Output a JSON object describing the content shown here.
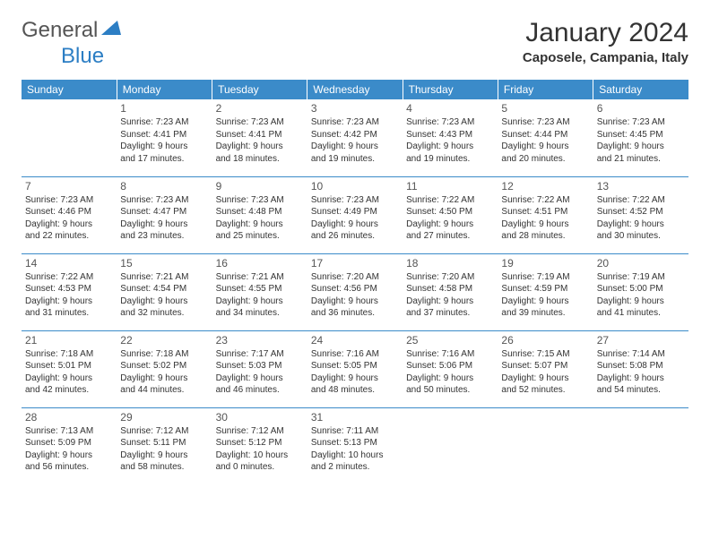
{
  "logo": {
    "general": "General",
    "blue": "Blue"
  },
  "title": "January 2024",
  "location": "Caposele, Campania, Italy",
  "colors": {
    "header_bg": "#3b8bc9",
    "header_fg": "#ffffff",
    "rule": "#3b8bc9",
    "text": "#333333",
    "logo_blue": "#2c7ec4"
  },
  "dayHeaders": [
    "Sunday",
    "Monday",
    "Tuesday",
    "Wednesday",
    "Thursday",
    "Friday",
    "Saturday"
  ],
  "weeks": [
    [
      null,
      {
        "n": "1",
        "sr": "Sunrise: 7:23 AM",
        "ss": "Sunset: 4:41 PM",
        "d1": "Daylight: 9 hours",
        "d2": "and 17 minutes."
      },
      {
        "n": "2",
        "sr": "Sunrise: 7:23 AM",
        "ss": "Sunset: 4:41 PM",
        "d1": "Daylight: 9 hours",
        "d2": "and 18 minutes."
      },
      {
        "n": "3",
        "sr": "Sunrise: 7:23 AM",
        "ss": "Sunset: 4:42 PM",
        "d1": "Daylight: 9 hours",
        "d2": "and 19 minutes."
      },
      {
        "n": "4",
        "sr": "Sunrise: 7:23 AM",
        "ss": "Sunset: 4:43 PM",
        "d1": "Daylight: 9 hours",
        "d2": "and 19 minutes."
      },
      {
        "n": "5",
        "sr": "Sunrise: 7:23 AM",
        "ss": "Sunset: 4:44 PM",
        "d1": "Daylight: 9 hours",
        "d2": "and 20 minutes."
      },
      {
        "n": "6",
        "sr": "Sunrise: 7:23 AM",
        "ss": "Sunset: 4:45 PM",
        "d1": "Daylight: 9 hours",
        "d2": "and 21 minutes."
      }
    ],
    [
      {
        "n": "7",
        "sr": "Sunrise: 7:23 AM",
        "ss": "Sunset: 4:46 PM",
        "d1": "Daylight: 9 hours",
        "d2": "and 22 minutes."
      },
      {
        "n": "8",
        "sr": "Sunrise: 7:23 AM",
        "ss": "Sunset: 4:47 PM",
        "d1": "Daylight: 9 hours",
        "d2": "and 23 minutes."
      },
      {
        "n": "9",
        "sr": "Sunrise: 7:23 AM",
        "ss": "Sunset: 4:48 PM",
        "d1": "Daylight: 9 hours",
        "d2": "and 25 minutes."
      },
      {
        "n": "10",
        "sr": "Sunrise: 7:23 AM",
        "ss": "Sunset: 4:49 PM",
        "d1": "Daylight: 9 hours",
        "d2": "and 26 minutes."
      },
      {
        "n": "11",
        "sr": "Sunrise: 7:22 AM",
        "ss": "Sunset: 4:50 PM",
        "d1": "Daylight: 9 hours",
        "d2": "and 27 minutes."
      },
      {
        "n": "12",
        "sr": "Sunrise: 7:22 AM",
        "ss": "Sunset: 4:51 PM",
        "d1": "Daylight: 9 hours",
        "d2": "and 28 minutes."
      },
      {
        "n": "13",
        "sr": "Sunrise: 7:22 AM",
        "ss": "Sunset: 4:52 PM",
        "d1": "Daylight: 9 hours",
        "d2": "and 30 minutes."
      }
    ],
    [
      {
        "n": "14",
        "sr": "Sunrise: 7:22 AM",
        "ss": "Sunset: 4:53 PM",
        "d1": "Daylight: 9 hours",
        "d2": "and 31 minutes."
      },
      {
        "n": "15",
        "sr": "Sunrise: 7:21 AM",
        "ss": "Sunset: 4:54 PM",
        "d1": "Daylight: 9 hours",
        "d2": "and 32 minutes."
      },
      {
        "n": "16",
        "sr": "Sunrise: 7:21 AM",
        "ss": "Sunset: 4:55 PM",
        "d1": "Daylight: 9 hours",
        "d2": "and 34 minutes."
      },
      {
        "n": "17",
        "sr": "Sunrise: 7:20 AM",
        "ss": "Sunset: 4:56 PM",
        "d1": "Daylight: 9 hours",
        "d2": "and 36 minutes."
      },
      {
        "n": "18",
        "sr": "Sunrise: 7:20 AM",
        "ss": "Sunset: 4:58 PM",
        "d1": "Daylight: 9 hours",
        "d2": "and 37 minutes."
      },
      {
        "n": "19",
        "sr": "Sunrise: 7:19 AM",
        "ss": "Sunset: 4:59 PM",
        "d1": "Daylight: 9 hours",
        "d2": "and 39 minutes."
      },
      {
        "n": "20",
        "sr": "Sunrise: 7:19 AM",
        "ss": "Sunset: 5:00 PM",
        "d1": "Daylight: 9 hours",
        "d2": "and 41 minutes."
      }
    ],
    [
      {
        "n": "21",
        "sr": "Sunrise: 7:18 AM",
        "ss": "Sunset: 5:01 PM",
        "d1": "Daylight: 9 hours",
        "d2": "and 42 minutes."
      },
      {
        "n": "22",
        "sr": "Sunrise: 7:18 AM",
        "ss": "Sunset: 5:02 PM",
        "d1": "Daylight: 9 hours",
        "d2": "and 44 minutes."
      },
      {
        "n": "23",
        "sr": "Sunrise: 7:17 AM",
        "ss": "Sunset: 5:03 PM",
        "d1": "Daylight: 9 hours",
        "d2": "and 46 minutes."
      },
      {
        "n": "24",
        "sr": "Sunrise: 7:16 AM",
        "ss": "Sunset: 5:05 PM",
        "d1": "Daylight: 9 hours",
        "d2": "and 48 minutes."
      },
      {
        "n": "25",
        "sr": "Sunrise: 7:16 AM",
        "ss": "Sunset: 5:06 PM",
        "d1": "Daylight: 9 hours",
        "d2": "and 50 minutes."
      },
      {
        "n": "26",
        "sr": "Sunrise: 7:15 AM",
        "ss": "Sunset: 5:07 PM",
        "d1": "Daylight: 9 hours",
        "d2": "and 52 minutes."
      },
      {
        "n": "27",
        "sr": "Sunrise: 7:14 AM",
        "ss": "Sunset: 5:08 PM",
        "d1": "Daylight: 9 hours",
        "d2": "and 54 minutes."
      }
    ],
    [
      {
        "n": "28",
        "sr": "Sunrise: 7:13 AM",
        "ss": "Sunset: 5:09 PM",
        "d1": "Daylight: 9 hours",
        "d2": "and 56 minutes."
      },
      {
        "n": "29",
        "sr": "Sunrise: 7:12 AM",
        "ss": "Sunset: 5:11 PM",
        "d1": "Daylight: 9 hours",
        "d2": "and 58 minutes."
      },
      {
        "n": "30",
        "sr": "Sunrise: 7:12 AM",
        "ss": "Sunset: 5:12 PM",
        "d1": "Daylight: 10 hours",
        "d2": "and 0 minutes."
      },
      {
        "n": "31",
        "sr": "Sunrise: 7:11 AM",
        "ss": "Sunset: 5:13 PM",
        "d1": "Daylight: 10 hours",
        "d2": "and 2 minutes."
      },
      null,
      null,
      null
    ]
  ]
}
